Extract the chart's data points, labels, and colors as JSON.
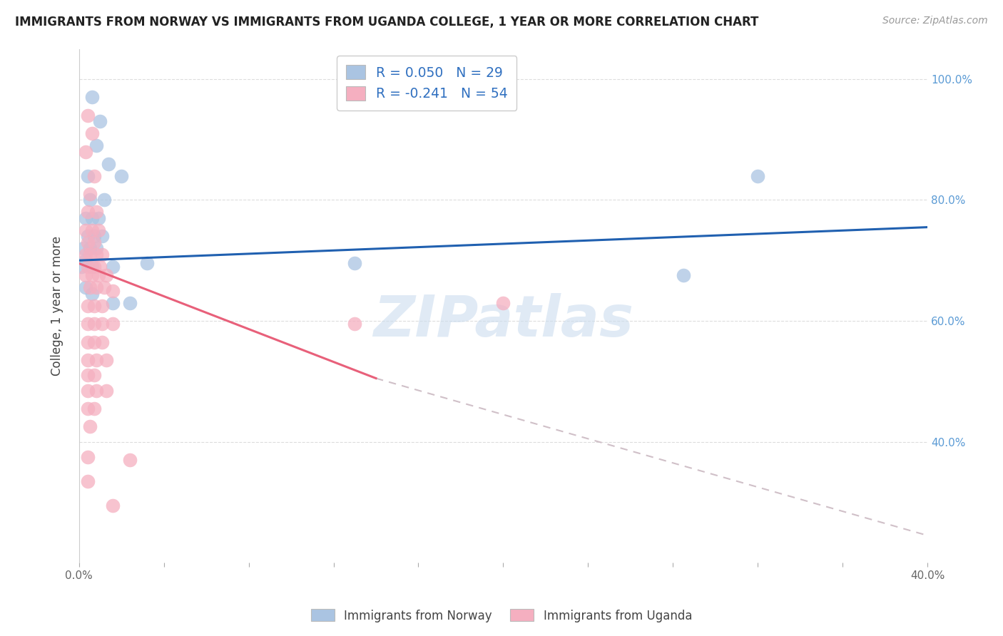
{
  "title": "IMMIGRANTS FROM NORWAY VS IMMIGRANTS FROM UGANDA COLLEGE, 1 YEAR OR MORE CORRELATION CHART",
  "source": "Source: ZipAtlas.com",
  "ylabel": "College, 1 year or more",
  "xlim": [
    0.0,
    0.4
  ],
  "ylim": [
    0.2,
    1.05
  ],
  "norway_R": 0.05,
  "norway_N": 29,
  "uganda_R": -0.241,
  "uganda_N": 54,
  "norway_color": "#aac4e2",
  "uganda_color": "#f5afc0",
  "norway_line_color": "#2060b0",
  "uganda_line_color": "#e8607a",
  "trend_dashed_color": "#d0c0c8",
  "norway_trend": [
    0.0,
    0.4,
    0.7,
    0.755
  ],
  "uganda_trend_solid": [
    0.0,
    0.14,
    0.695,
    0.505
  ],
  "uganda_trend_dashed": [
    0.14,
    0.4,
    0.505,
    0.245
  ],
  "norway_points": [
    [
      0.006,
      0.97
    ],
    [
      0.01,
      0.93
    ],
    [
      0.008,
      0.89
    ],
    [
      0.014,
      0.86
    ],
    [
      0.004,
      0.84
    ],
    [
      0.02,
      0.84
    ],
    [
      0.005,
      0.8
    ],
    [
      0.012,
      0.8
    ],
    [
      0.003,
      0.77
    ],
    [
      0.006,
      0.77
    ],
    [
      0.009,
      0.77
    ],
    [
      0.004,
      0.74
    ],
    [
      0.007,
      0.74
    ],
    [
      0.011,
      0.74
    ],
    [
      0.002,
      0.72
    ],
    [
      0.005,
      0.72
    ],
    [
      0.008,
      0.72
    ],
    [
      0.003,
      0.7
    ],
    [
      0.001,
      0.69
    ],
    [
      0.006,
      0.69
    ],
    [
      0.016,
      0.69
    ],
    [
      0.032,
      0.695
    ],
    [
      0.003,
      0.655
    ],
    [
      0.006,
      0.645
    ],
    [
      0.016,
      0.63
    ],
    [
      0.024,
      0.63
    ],
    [
      0.13,
      0.695
    ],
    [
      0.285,
      0.675
    ],
    [
      0.32,
      0.84
    ]
  ],
  "uganda_points": [
    [
      0.004,
      0.94
    ],
    [
      0.006,
      0.91
    ],
    [
      0.003,
      0.88
    ],
    [
      0.007,
      0.84
    ],
    [
      0.005,
      0.81
    ],
    [
      0.004,
      0.78
    ],
    [
      0.008,
      0.78
    ],
    [
      0.003,
      0.75
    ],
    [
      0.006,
      0.75
    ],
    [
      0.009,
      0.75
    ],
    [
      0.004,
      0.73
    ],
    [
      0.007,
      0.73
    ],
    [
      0.003,
      0.71
    ],
    [
      0.005,
      0.71
    ],
    [
      0.008,
      0.71
    ],
    [
      0.011,
      0.71
    ],
    [
      0.004,
      0.69
    ],
    [
      0.007,
      0.69
    ],
    [
      0.01,
      0.69
    ],
    [
      0.003,
      0.675
    ],
    [
      0.006,
      0.675
    ],
    [
      0.009,
      0.675
    ],
    [
      0.013,
      0.675
    ],
    [
      0.005,
      0.655
    ],
    [
      0.008,
      0.655
    ],
    [
      0.012,
      0.655
    ],
    [
      0.016,
      0.65
    ],
    [
      0.004,
      0.625
    ],
    [
      0.007,
      0.625
    ],
    [
      0.011,
      0.625
    ],
    [
      0.004,
      0.595
    ],
    [
      0.007,
      0.595
    ],
    [
      0.011,
      0.595
    ],
    [
      0.016,
      0.595
    ],
    [
      0.004,
      0.565
    ],
    [
      0.007,
      0.565
    ],
    [
      0.011,
      0.565
    ],
    [
      0.004,
      0.535
    ],
    [
      0.008,
      0.535
    ],
    [
      0.013,
      0.535
    ],
    [
      0.004,
      0.51
    ],
    [
      0.007,
      0.51
    ],
    [
      0.004,
      0.485
    ],
    [
      0.008,
      0.485
    ],
    [
      0.013,
      0.485
    ],
    [
      0.004,
      0.455
    ],
    [
      0.007,
      0.455
    ],
    [
      0.005,
      0.425
    ],
    [
      0.004,
      0.375
    ],
    [
      0.024,
      0.37
    ],
    [
      0.004,
      0.335
    ],
    [
      0.13,
      0.595
    ],
    [
      0.2,
      0.63
    ],
    [
      0.016,
      0.295
    ]
  ],
  "watermark": "ZIPatlas",
  "background_color": "white",
  "grid_color": "#dddddd",
  "right_tick_color": "#5b9bd5",
  "tick_label_fontsize": 11,
  "title_fontsize": 12,
  "source_fontsize": 10
}
